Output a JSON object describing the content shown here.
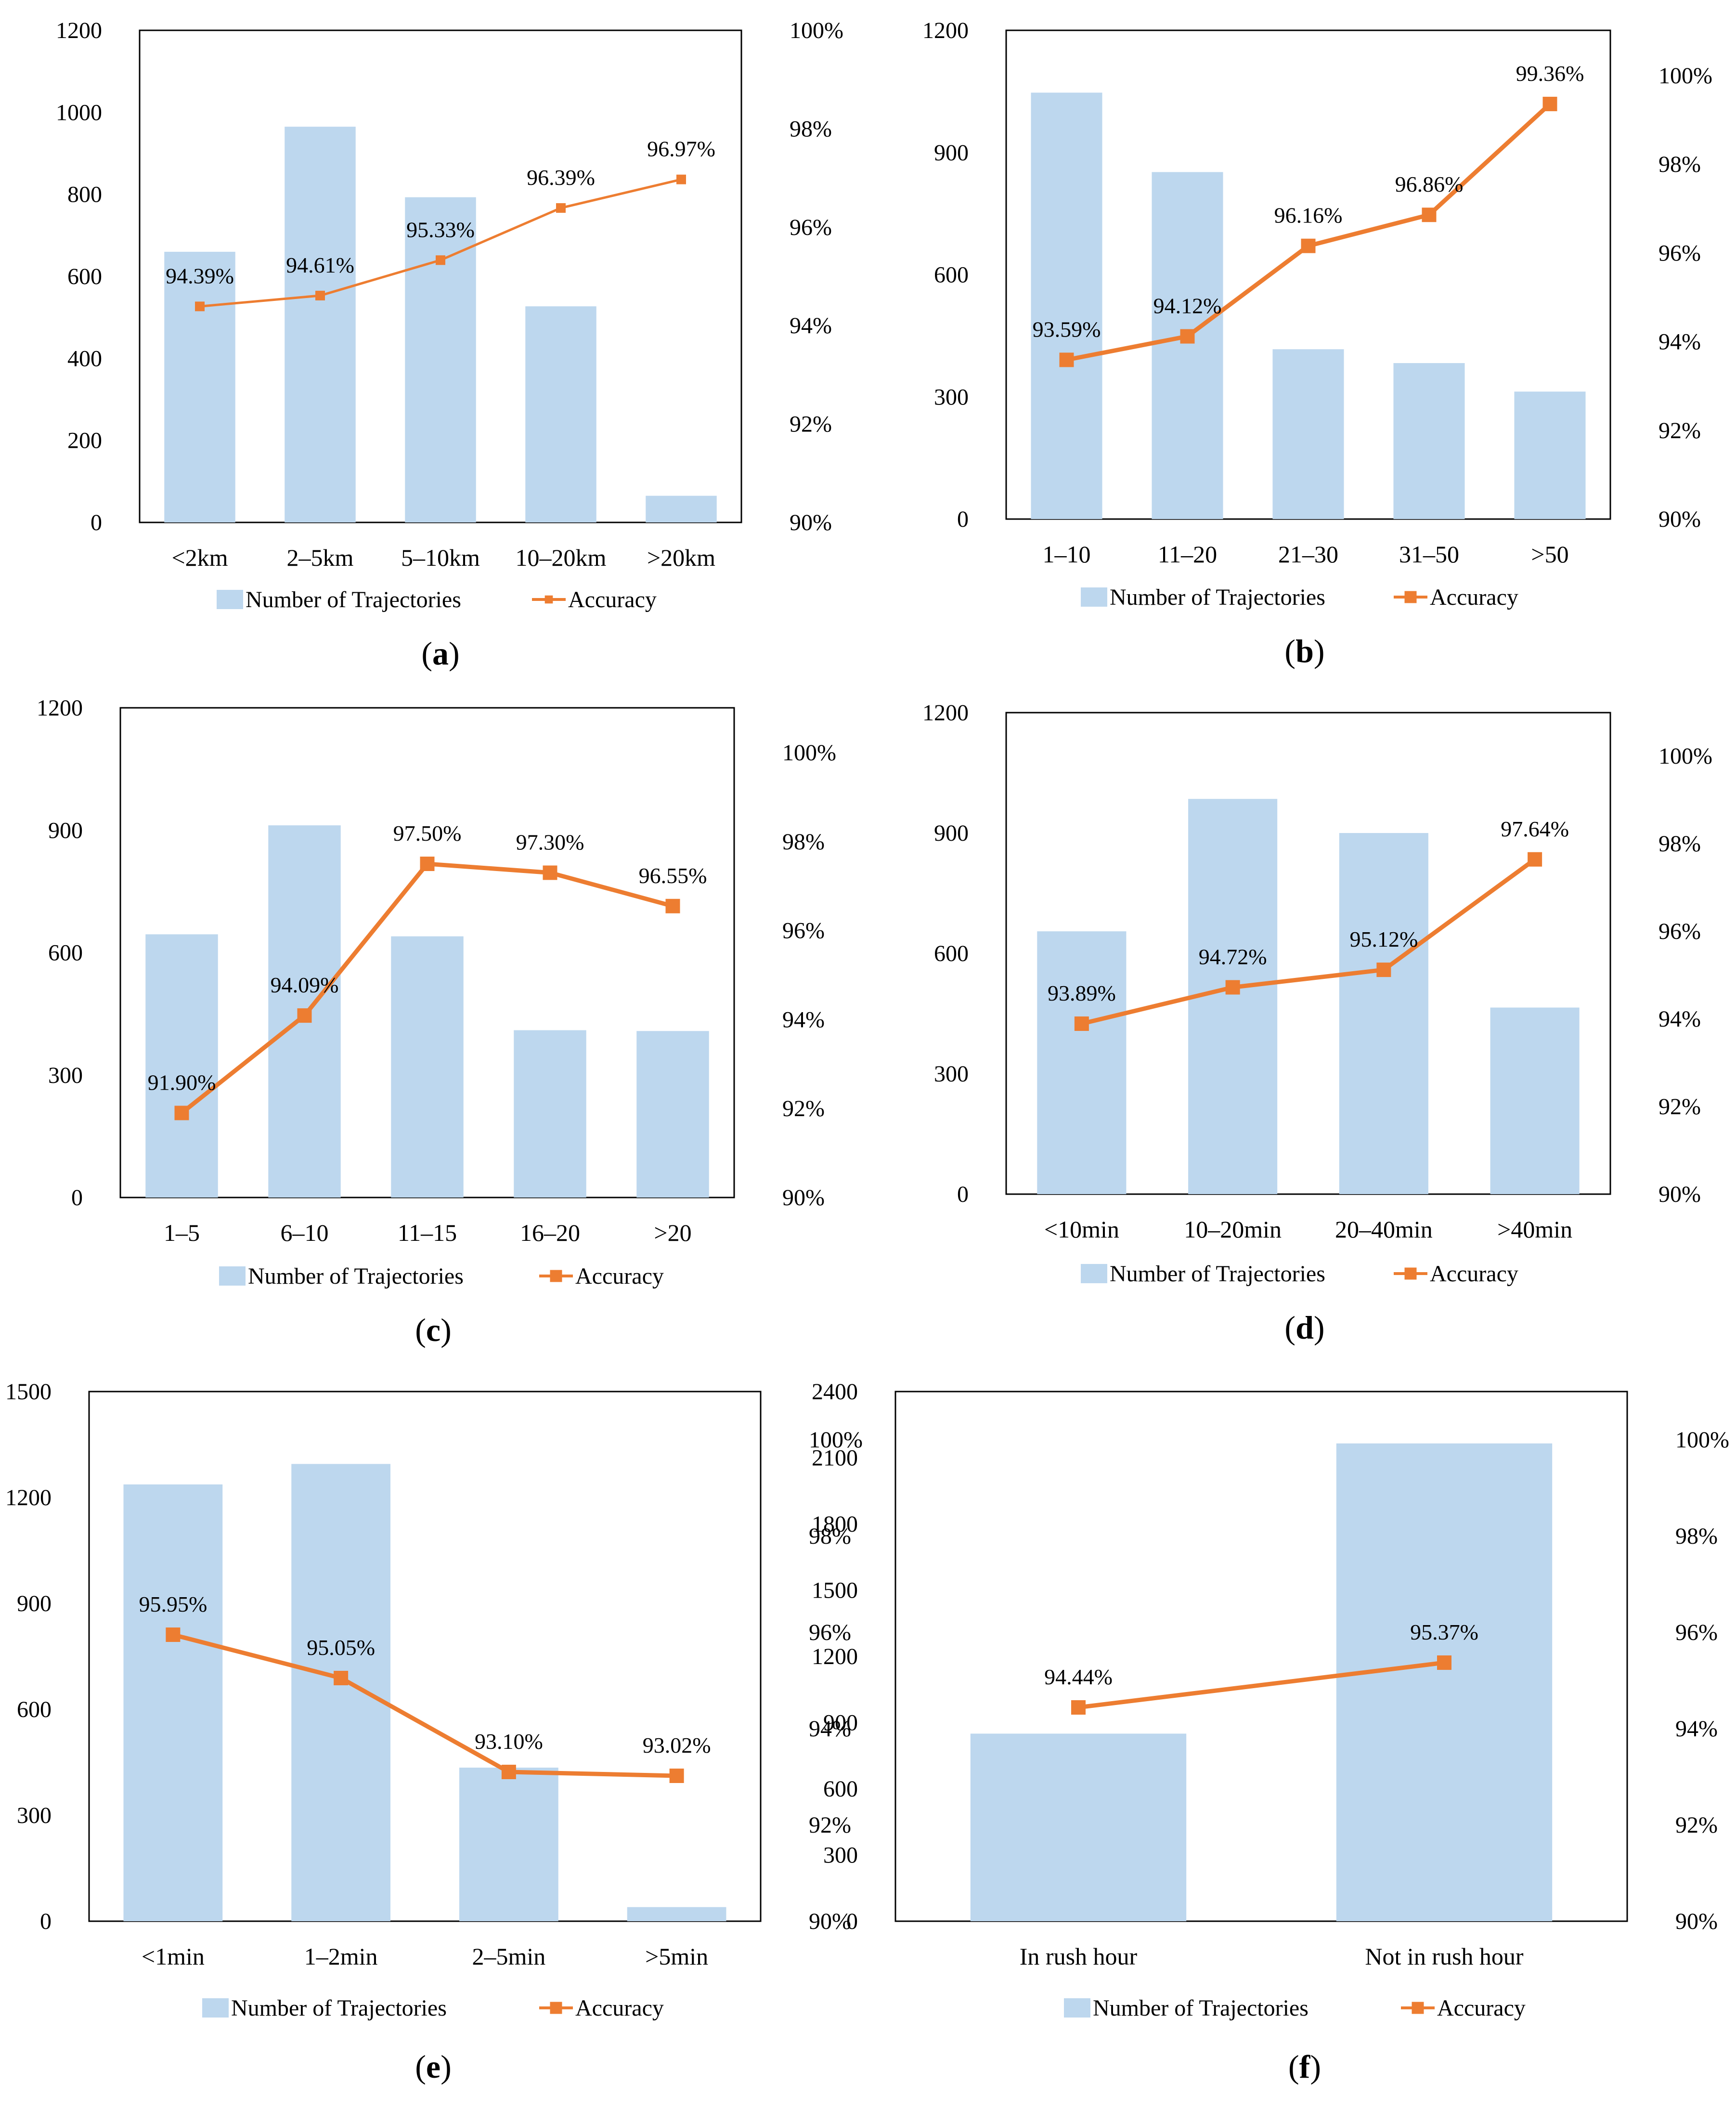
{
  "colors": {
    "bar": "#BDD7EE",
    "line": "#ED7D31",
    "frame": "#000000"
  },
  "legend": {
    "bar_label": "Number of Trajectories",
    "line_label": "Accuracy"
  },
  "chart_data": [
    {
      "id": "a",
      "caption": "a",
      "type": "bar+line",
      "categories": [
        "<2km",
        "2–5km",
        "5–10km",
        "10–20km",
        ">20km"
      ],
      "bar_series": {
        "name": "Number of Trajectories",
        "values": [
          660,
          965,
          793,
          527,
          65
        ]
      },
      "line_series": {
        "name": "Accuracy",
        "values": [
          94.39,
          94.61,
          95.33,
          96.39,
          96.97
        ],
        "labels": [
          "94.39%",
          "94.61%",
          "95.33%",
          "96.39%",
          "96.97%"
        ]
      },
      "y_left": {
        "min": 0,
        "max": 1200,
        "ticks": [
          "0",
          "200",
          "400",
          "600",
          "800",
          "1000",
          "1200"
        ]
      },
      "y_right": {
        "min": 90,
        "max": 100,
        "ticks": [
          "90%",
          "92%",
          "94%",
          "96%",
          "98%",
          "100%"
        ]
      },
      "marker": "small"
    },
    {
      "id": "b",
      "caption": "b",
      "type": "bar+line",
      "categories": [
        "1–10",
        "11–20",
        "21–30",
        "31–50",
        ">50"
      ],
      "bar_series": {
        "name": "Number of Trajectories",
        "values": [
          1047,
          852,
          417,
          383,
          313
        ]
      },
      "line_series": {
        "name": "Accuracy",
        "values": [
          93.59,
          94.12,
          96.16,
          96.86,
          99.36
        ],
        "labels": [
          "93.59%",
          "94.12%",
          "96.16%",
          "96.86%",
          "99.36%"
        ]
      },
      "y_left": {
        "min": 0,
        "max": 1200,
        "ticks": [
          "0",
          "300",
          "600",
          "900",
          "1200"
        ]
      },
      "y_right": {
        "min": 90,
        "max": 101,
        "ticks": [
          "90%",
          "92%",
          "94%",
          "96%",
          "98%",
          "100%"
        ]
      },
      "marker": "large"
    },
    {
      "id": "c",
      "caption": "c",
      "type": "bar+line",
      "categories": [
        "1–5",
        "6–10",
        "11–15",
        "16–20",
        ">20"
      ],
      "bar_series": {
        "name": "Number of Trajectories",
        "values": [
          645,
          912,
          640,
          410,
          408
        ]
      },
      "line_series": {
        "name": "Accuracy",
        "values": [
          91.9,
          94.09,
          97.5,
          97.3,
          96.55
        ],
        "labels": [
          "91.90%",
          "94.09%",
          "97.50%",
          "97.30%",
          "96.55%"
        ]
      },
      "y_left": {
        "min": 0,
        "max": 1200,
        "ticks": [
          "0",
          "300",
          "600",
          "900",
          "1200"
        ]
      },
      "y_right": {
        "min": 90,
        "max": 101,
        "ticks": [
          "90%",
          "92%",
          "94%",
          "96%",
          "98%",
          "100%"
        ]
      },
      "marker": "large"
    },
    {
      "id": "d",
      "caption": "d",
      "type": "bar+line",
      "categories": [
        "<10min",
        "10–20min",
        "20–40min",
        ">40min"
      ],
      "bar_series": {
        "name": "Number of Trajectories",
        "values": [
          655,
          985,
          900,
          465
        ]
      },
      "line_series": {
        "name": "Accuracy",
        "values": [
          93.89,
          94.72,
          95.12,
          97.64
        ],
        "labels": [
          "93.89%",
          "94.72%",
          "95.12%",
          "97.64%"
        ]
      },
      "y_left": {
        "min": 0,
        "max": 1200,
        "ticks": [
          "0",
          "300",
          "600",
          "900",
          "1200"
        ]
      },
      "y_right": {
        "min": 90,
        "max": 101,
        "ticks": [
          "90%",
          "92%",
          "94%",
          "96%",
          "98%",
          "100%"
        ]
      },
      "marker": "large"
    },
    {
      "id": "e",
      "caption": "e",
      "type": "bar+line",
      "categories": [
        "<1min",
        "1–2min",
        "2–5min",
        ">5min"
      ],
      "bar_series": {
        "name": "Number of Trajectories",
        "values": [
          1237,
          1295,
          435,
          40
        ]
      },
      "line_series": {
        "name": "Accuracy",
        "values": [
          95.95,
          95.05,
          93.1,
          93.02
        ],
        "labels": [
          "95.95%",
          "95.05%",
          "93.10%",
          "93.02%"
        ]
      },
      "y_left": {
        "min": 0,
        "max": 1500,
        "ticks": [
          "0",
          "300",
          "600",
          "900",
          "1200",
          "1500"
        ]
      },
      "y_right": {
        "min": 90,
        "max": 101,
        "ticks": [
          "90%",
          "92%",
          "94%",
          "96%",
          "98%",
          "100%"
        ]
      },
      "marker": "large"
    },
    {
      "id": "f",
      "caption": "f",
      "type": "bar+line",
      "categories": [
        "In rush hour",
        "Not in rush hour"
      ],
      "bar_series": {
        "name": "Number of Trajectories",
        "values": [
          850,
          2165
        ]
      },
      "line_series": {
        "name": "Accuracy",
        "values": [
          94.44,
          95.37
        ],
        "labels": [
          "94.44%",
          "95.37%"
        ]
      },
      "y_left": {
        "min": 0,
        "max": 2400,
        "ticks": [
          "0",
          "300",
          "600",
          "900",
          "1200",
          "1500",
          "1800",
          "2100",
          "2400"
        ]
      },
      "y_right": {
        "min": 90,
        "max": 101,
        "ticks": [
          "90%",
          "92%",
          "94%",
          "96%",
          "98%",
          "100%"
        ]
      },
      "marker": "large"
    }
  ]
}
